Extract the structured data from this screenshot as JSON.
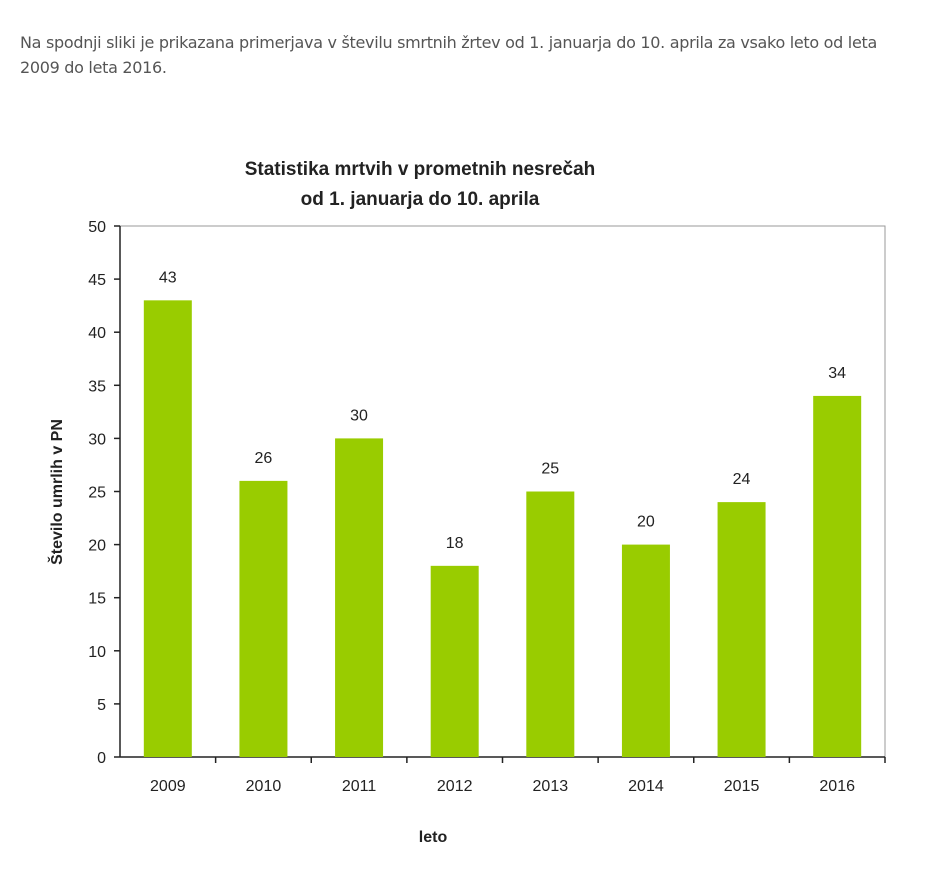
{
  "intro_text": "Na spodnji sliki je prikazana primerjava v številu smrtnih žrtev od 1. januarja do 10. aprila za vsako leto od leta 2009 do leta 2016.",
  "chart_data": {
    "type": "bar",
    "title_line1": "Statistika mrtvih v prometnih nesrečah",
    "title_line2": "od 1. januarja do 10. aprila",
    "xlabel": "leto",
    "ylabel": "Število umrlih v PN",
    "categories": [
      "2009",
      "2010",
      "2011",
      "2012",
      "2013",
      "2014",
      "2015",
      "2016"
    ],
    "values": [
      43,
      26,
      30,
      18,
      25,
      20,
      24,
      34
    ],
    "ylim": [
      0,
      50
    ],
    "yticks": [
      0,
      5,
      10,
      15,
      20,
      25,
      30,
      35,
      40,
      45,
      50
    ],
    "grid": false,
    "data_labels": true,
    "bar_color": "#99cc00"
  }
}
